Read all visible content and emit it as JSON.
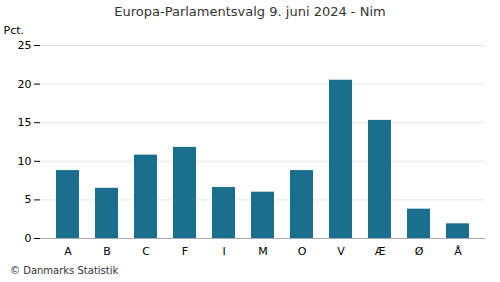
{
  "chart_data": {
    "type": "bar",
    "title": "Europa-Parlamentsvalg 9. juni 2024 - Nim",
    "categories": [
      "A",
      "B",
      "C",
      "F",
      "I",
      "M",
      "O",
      "V",
      "Æ",
      "Ø",
      "Å"
    ],
    "values": [
      8.8,
      6.5,
      10.8,
      11.8,
      6.6,
      6.0,
      8.8,
      20.5,
      15.3,
      3.8,
      1.9
    ],
    "color": "#1a6e8e",
    "ylabel": "Pct.",
    "ylim": [
      0,
      25
    ],
    "yticks": [
      0,
      5,
      10,
      15,
      20,
      25
    ],
    "grid": true,
    "annotations": [
      "© Danmarks Statistik"
    ]
  }
}
